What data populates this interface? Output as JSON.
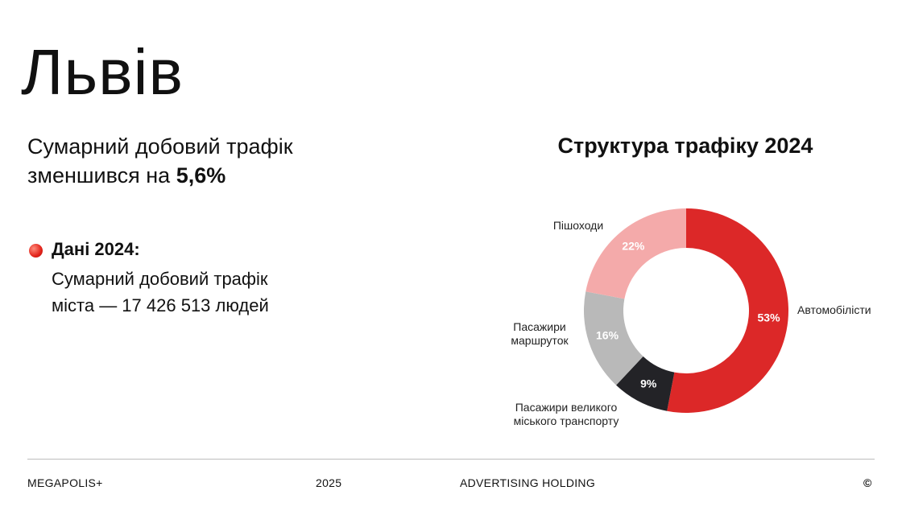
{
  "title": "Львів",
  "subtitle": {
    "text": "Сумарний добовий трафік зменшився на",
    "highlight": "5,6%"
  },
  "bullet": {
    "heading": "Дані 2024:",
    "text": "Сумарний добовий трафік міста — 17 426 513 людей"
  },
  "footer": {
    "brand": "MEGAPOLIS+",
    "year": "2025",
    "holding": "ADVERTISING HOLDING",
    "copyright": "©"
  },
  "chart_data": {
    "type": "donut",
    "title": "Структура трафіку 2024",
    "categories": [
      "Автомобілісти",
      "Пасажири великого міського транспорту",
      "Пасажири маршруток",
      "Пішоходи"
    ],
    "values": [
      53,
      9,
      16,
      22
    ],
    "value_labels": [
      "53%",
      "9%",
      "16%",
      "22%"
    ],
    "colors": [
      "#dc2828",
      "#232327",
      "#b9b9b9",
      "#f4aaaa"
    ]
  }
}
